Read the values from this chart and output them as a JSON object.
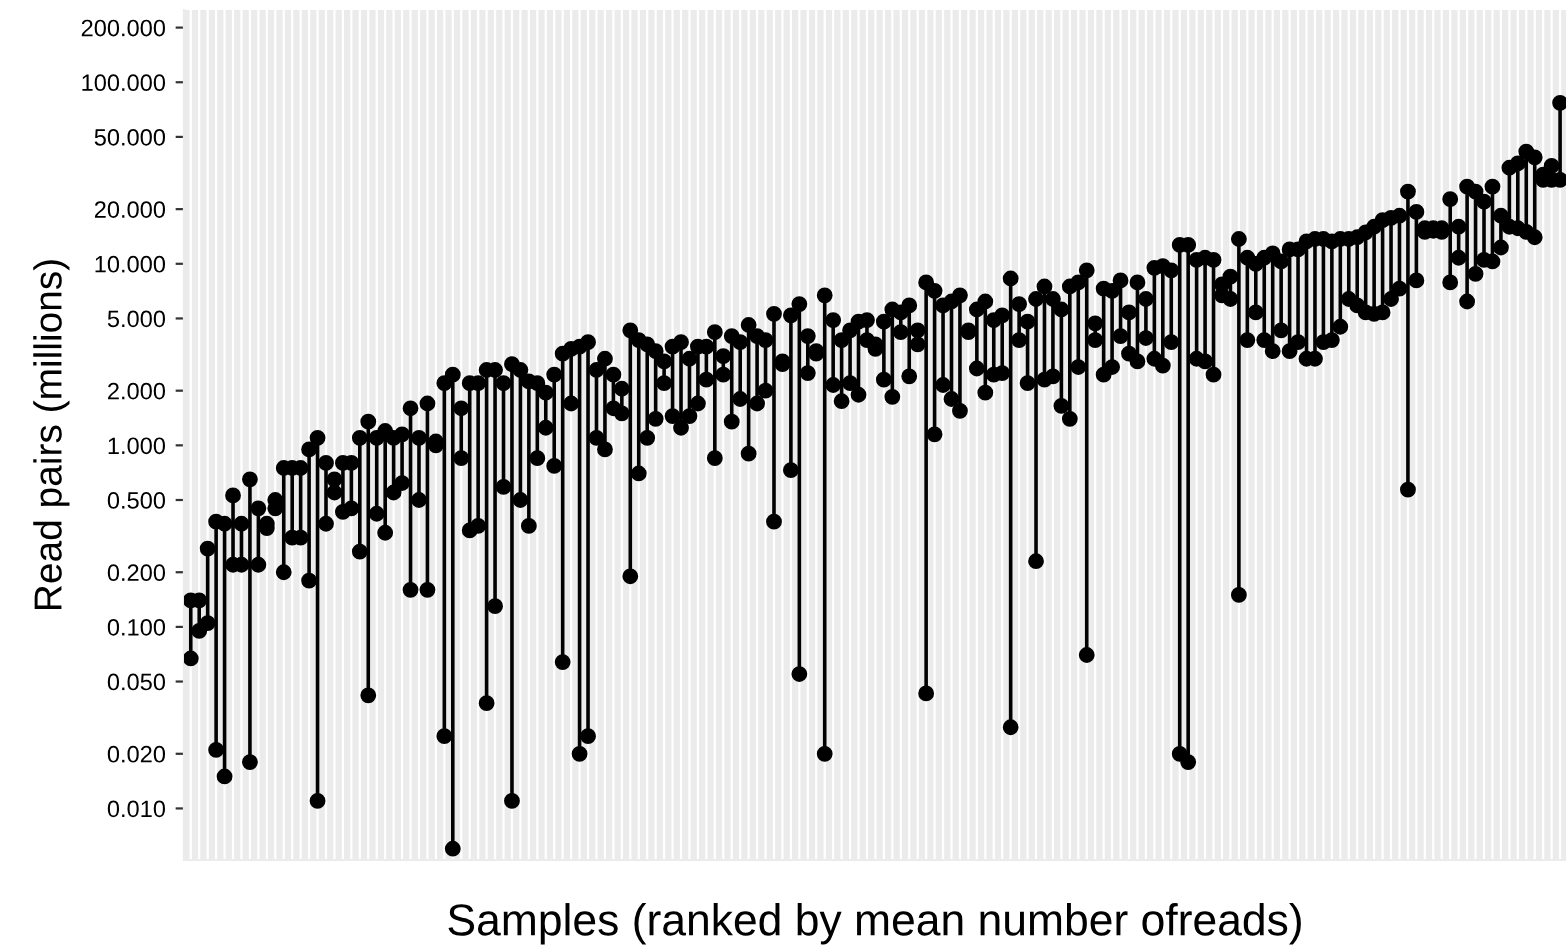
{
  "chart_data": {
    "type": "scatter",
    "xlabel": "Samples (ranked by mean number ofreads)",
    "ylabel": "Read pairs (millions)",
    "categories": [
      null,
      null,
      null,
      null,
      null,
      null,
      null,
      null,
      null,
      null,
      null,
      null,
      null,
      null,
      null,
      null,
      null,
      null,
      null,
      null,
      null,
      null,
      null,
      null,
      null,
      null,
      null,
      null,
      null,
      null,
      null,
      null,
      null,
      null,
      null,
      null,
      null,
      null,
      null,
      null,
      null,
      null,
      null,
      null,
      null,
      null,
      null,
      null,
      null,
      null,
      null,
      null,
      null,
      null,
      null,
      null,
      null,
      null,
      null,
      null,
      null,
      null,
      null,
      null,
      null,
      null,
      null,
      null,
      null,
      null,
      null,
      null,
      null,
      null,
      null,
      null,
      null,
      null,
      null,
      null,
      null,
      null,
      null,
      null,
      null,
      null,
      null,
      null,
      null,
      null,
      null,
      null,
      null,
      null,
      null,
      null,
      null,
      null,
      null,
      null,
      null,
      null,
      null,
      null,
      null,
      null,
      null,
      null,
      null,
      null,
      null,
      null,
      null,
      null,
      null,
      null,
      null,
      null,
      null,
      null,
      null,
      null,
      null,
      null,
      null,
      null,
      null,
      null,
      null,
      null,
      null,
      null,
      null,
      null,
      null,
      null,
      null,
      null,
      null,
      null,
      null,
      null,
      null,
      null,
      null,
      null,
      null,
      null,
      null,
      null,
      null,
      null,
      null,
      null,
      null,
      null,
      null,
      null,
      null,
      null,
      null,
      null,
      null
    ],
    "series": [
      {
        "color": "#000000",
        "values": [
          0.14,
          0.14,
          0.27,
          0.38,
          0.37,
          0.53,
          0.37,
          0.65,
          0.45,
          0.37,
          0.5,
          0.75,
          0.75,
          0.75,
          0.95,
          1.1,
          0.8,
          0.65,
          0.8,
          0.8,
          1.1,
          1.35,
          1.1,
          1.2,
          1.1,
          1.15,
          1.6,
          1.1,
          1.7,
          1.05,
          2.2,
          2.45,
          1.6,
          2.2,
          2.2,
          2.6,
          2.6,
          2.2,
          2.8,
          2.6,
          2.25,
          2.2,
          1.95,
          2.45,
          3.2,
          3.4,
          3.5,
          3.7,
          2.6,
          3.0,
          2.45,
          2.05,
          4.3,
          3.8,
          3.6,
          3.3,
          2.9,
          3.5,
          3.7,
          3.0,
          3.5,
          3.5,
          4.2,
          3.1,
          4.0,
          3.7,
          4.6,
          4.0,
          3.8,
          5.3,
          2.9,
          5.2,
          6.0,
          4.0,
          3.3,
          6.7,
          4.9,
          3.8,
          4.3,
          4.8,
          4.9,
          3.6,
          4.8,
          5.6,
          5.4,
          5.9,
          4.3,
          7.9,
          7.1,
          5.9,
          6.2,
          6.7,
          4.3,
          5.6,
          6.2,
          4.9,
          5.2,
          8.3,
          6.0,
          4.8,
          6.4,
          7.5,
          6.4,
          5.6,
          7.5,
          7.9,
          9.2,
          4.7,
          7.3,
          7.1,
          8.1,
          5.4,
          7.9,
          6.4,
          9.5,
          9.7,
          9.2,
          12.7,
          12.7,
          10.5,
          10.8,
          10.5,
          7.7,
          8.5,
          13.7,
          10.8,
          10,
          10.8,
          11.4,
          10.3,
          12,
          12,
          13.3,
          13.7,
          13.7,
          13.3,
          13.7,
          13.7,
          14,
          14.9,
          16,
          17.4,
          17.9,
          18.4,
          25,
          19.3,
          15.7,
          15.7,
          15.7,
          22.7,
          16,
          26.6,
          25,
          22,
          26.6,
          18.4,
          33.8,
          35.7,
          41.5,
          38.6,
          31,
          34.6,
          77
        ]
      },
      {
        "color": "#000000",
        "values": [
          0.067,
          0.095,
          0.105,
          0.021,
          0.015,
          0.22,
          0.22,
          0.018,
          0.22,
          0.35,
          0.45,
          0.2,
          0.31,
          0.31,
          0.18,
          0.011,
          0.37,
          0.55,
          0.43,
          0.45,
          0.26,
          0.042,
          0.42,
          0.33,
          0.55,
          0.62,
          0.16,
          0.5,
          0.16,
          1.0,
          0.025,
          0.006,
          0.85,
          0.34,
          0.36,
          0.038,
          0.13,
          0.59,
          0.011,
          0.5,
          0.36,
          0.85,
          1.25,
          0.77,
          0.064,
          1.7,
          0.02,
          0.025,
          1.1,
          0.95,
          1.6,
          1.5,
          0.19,
          0.7,
          1.1,
          1.4,
          2.2,
          1.45,
          1.25,
          1.45,
          1.7,
          2.3,
          0.85,
          2.45,
          1.35,
          1.8,
          0.9,
          1.7,
          2.0,
          0.38,
          2.8,
          0.73,
          0.055,
          2.5,
          3.2,
          0.02,
          2.15,
          1.75,
          2.2,
          1.9,
          3.8,
          3.4,
          2.3,
          1.85,
          4.2,
          2.4,
          3.6,
          0.043,
          1.15,
          2.15,
          1.8,
          1.55,
          4.2,
          2.65,
          1.95,
          2.45,
          2.5,
          0.028,
          3.8,
          2.2,
          0.23,
          2.3,
          2.4,
          1.65,
          1.4,
          2.7,
          0.07,
          3.8,
          2.45,
          2.7,
          4.0,
          3.2,
          2.9,
          3.9,
          3.0,
          2.75,
          3.7,
          0.02,
          0.018,
          3.0,
          2.9,
          2.45,
          6.7,
          6.4,
          0.15,
          3.8,
          5.4,
          3.8,
          3.3,
          4.3,
          3.3,
          3.7,
          3.0,
          3.0,
          3.7,
          3.8,
          4.5,
          6.4,
          5.9,
          5.4,
          5.3,
          5.4,
          6.4,
          7.3,
          0.57,
          8.1,
          15,
          15.2,
          15,
          7.9,
          10.8,
          6.2,
          8.8,
          10.5,
          10.3,
          12.3,
          16,
          15.7,
          15,
          14,
          29,
          29,
          29
        ]
      }
    ],
    "marker": "circle",
    "log": true,
    "ylim": [
      0.0052,
      250
    ],
    "yticks": [
      {
        "value": 0.01,
        "label": "0.010"
      },
      {
        "value": 0.02,
        "label": "0.020"
      },
      {
        "value": 0.05,
        "label": "0.050"
      },
      {
        "value": 0.1,
        "label": "0.100"
      },
      {
        "value": 0.2,
        "label": "0.200"
      },
      {
        "value": 0.5,
        "label": "0.500"
      },
      {
        "value": 1,
        "label": "1.000"
      },
      {
        "value": 2,
        "label": "2.000"
      },
      {
        "value": 5,
        "label": "5.000"
      },
      {
        "value": 10,
        "label": "10.000"
      },
      {
        "value": 20,
        "label": "20.000"
      },
      {
        "value": 50,
        "label": "50.000"
      },
      {
        "value": 100,
        "label": "100.000"
      },
      {
        "value": 200,
        "label": "200.000"
      }
    ],
    "grid": "x"
  }
}
